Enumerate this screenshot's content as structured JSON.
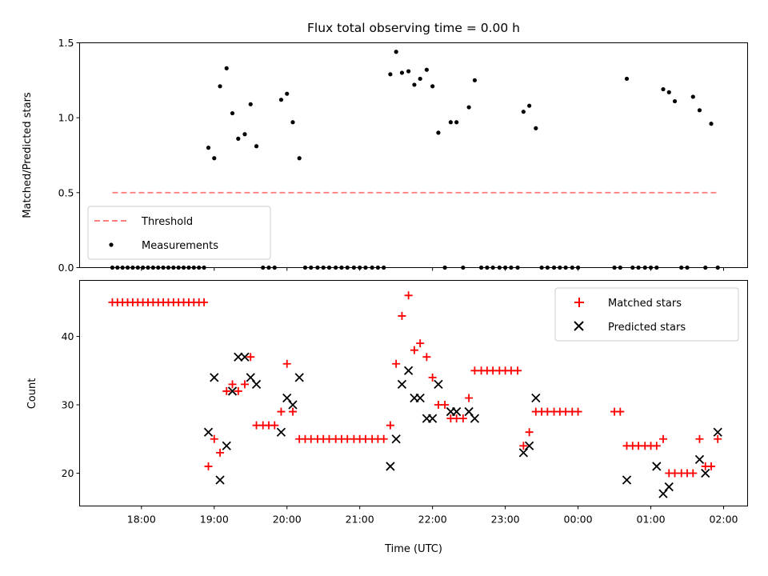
{
  "chart_data": [
    {
      "type": "scatter",
      "title": "Flux total observing time = 0.00 h",
      "xlabel": "",
      "ylabel": "Matched/Predicted stars",
      "xlim": [
        17.15,
        26.33
      ],
      "ylim": [
        0,
        1.5
      ],
      "yticks": [
        0,
        0.5,
        1.0,
        1.5
      ],
      "ytick_labels": [
        "0.0",
        "0.5",
        "1.0",
        "1.5"
      ],
      "legend_position": "lower-left",
      "series": [
        {
          "name": "Threshold",
          "kind": "line",
          "style": "dashed",
          "color": "#ff7f7f",
          "x": [
            17.6,
            25.9
          ],
          "y": [
            0.5,
            0.5
          ]
        },
        {
          "name": "Measurements",
          "kind": "scatter",
          "color": "#000000",
          "x": [
            17.6,
            17.67,
            17.74,
            17.81,
            17.88,
            17.95,
            18.02,
            18.09,
            18.16,
            18.23,
            18.3,
            18.37,
            18.44,
            18.51,
            18.58,
            18.65,
            18.72,
            18.79,
            18.86,
            18.92,
            19.0,
            19.08,
            19.17,
            19.25,
            19.33,
            19.42,
            19.5,
            19.58,
            19.67,
            19.75,
            19.83,
            19.92,
            20.0,
            20.08,
            20.17,
            20.25,
            20.33,
            20.42,
            20.5,
            20.58,
            20.67,
            20.75,
            20.83,
            20.92,
            21.0,
            21.08,
            21.17,
            21.25,
            21.33,
            21.42,
            21.5,
            21.58,
            21.67,
            21.75,
            21.83,
            21.92,
            22.0,
            22.08,
            22.17,
            22.25,
            22.33,
            22.42,
            22.5,
            22.58,
            22.67,
            22.75,
            22.83,
            22.92,
            23.0,
            23.08,
            23.17,
            23.25,
            23.33,
            23.42,
            23.5,
            23.58,
            23.67,
            23.75,
            23.83,
            23.92,
            24.0,
            24.5,
            24.58,
            24.67,
            24.75,
            24.83,
            24.92,
            25.0,
            25.08,
            25.17,
            25.25,
            25.33,
            25.42,
            25.5,
            25.58,
            25.67,
            25.75,
            25.83,
            25.92
          ],
          "y": [
            0,
            0,
            0,
            0,
            0,
            0,
            0,
            0,
            0,
            0,
            0,
            0,
            0,
            0,
            0,
            0,
            0,
            0,
            0,
            0.8,
            0.73,
            1.21,
            1.33,
            1.03,
            0.86,
            0.89,
            1.09,
            0.81,
            0,
            0,
            0,
            1.12,
            1.16,
            0.97,
            0.73,
            0,
            0,
            0,
            0,
            0,
            0,
            0,
            0,
            0,
            0,
            0,
            0,
            0,
            0,
            1.29,
            1.44,
            1.3,
            1.31,
            1.22,
            1.26,
            1.32,
            1.21,
            0.9,
            0,
            0.97,
            0.97,
            0,
            1.07,
            1.25,
            0,
            0,
            0,
            0,
            0,
            0,
            0,
            1.04,
            1.08,
            0.93,
            0,
            0,
            0,
            0,
            0,
            0,
            0,
            0,
            0,
            1.26,
            0,
            0,
            0,
            0,
            0,
            1.19,
            1.17,
            1.11,
            0,
            0,
            1.14,
            1.05,
            0,
            0.96,
            0
          ]
        }
      ]
    },
    {
      "type": "scatter",
      "title": "",
      "xlabel": "Time (UTC)",
      "ylabel": "Count",
      "xlim": [
        17.15,
        26.33
      ],
      "ylim": [
        15.2,
        48.2
      ],
      "xticks": [
        18,
        19,
        20,
        21,
        22,
        23,
        24,
        25,
        26
      ],
      "xtick_labels": [
        "18:00",
        "19:00",
        "20:00",
        "21:00",
        "22:00",
        "23:00",
        "00:00",
        "01:00",
        "02:00"
      ],
      "yticks": [
        20,
        30,
        40
      ],
      "ytick_labels": [
        "20",
        "30",
        "40"
      ],
      "legend_position": "top-right",
      "series": [
        {
          "name": "Matched stars",
          "marker": "plus",
          "color": "#ff0000",
          "x": [
            17.6,
            17.67,
            17.74,
            17.81,
            17.88,
            17.95,
            18.02,
            18.09,
            18.16,
            18.23,
            18.3,
            18.37,
            18.44,
            18.51,
            18.58,
            18.65,
            18.72,
            18.79,
            18.86,
            18.92,
            19.0,
            19.08,
            19.17,
            19.25,
            19.33,
            19.42,
            19.5,
            19.58,
            19.67,
            19.75,
            19.83,
            19.92,
            20.0,
            20.08,
            20.17,
            20.25,
            20.33,
            20.42,
            20.5,
            20.58,
            20.67,
            20.75,
            20.83,
            20.92,
            21.0,
            21.08,
            21.17,
            21.25,
            21.33,
            21.42,
            21.5,
            21.58,
            21.67,
            21.75,
            21.83,
            21.92,
            22.0,
            22.08,
            22.17,
            22.25,
            22.33,
            22.42,
            22.5,
            22.58,
            22.67,
            22.75,
            22.83,
            22.92,
            23.0,
            23.08,
            23.17,
            23.25,
            23.33,
            23.42,
            23.5,
            23.58,
            23.67,
            23.75,
            23.83,
            23.92,
            24.0,
            24.5,
            24.58,
            24.67,
            24.75,
            24.83,
            24.92,
            25.0,
            25.08,
            25.17,
            25.25,
            25.33,
            25.42,
            25.5,
            25.58,
            25.67,
            25.75,
            25.83,
            25.92
          ],
          "y": [
            45,
            45,
            45,
            45,
            45,
            45,
            45,
            45,
            45,
            45,
            45,
            45,
            45,
            45,
            45,
            45,
            45,
            45,
            45,
            21,
            25,
            23,
            32,
            33,
            32,
            33,
            37,
            27,
            27,
            27,
            27,
            29,
            36,
            29,
            25,
            25,
            25,
            25,
            25,
            25,
            25,
            25,
            25,
            25,
            25,
            25,
            25,
            25,
            25,
            27,
            36,
            43,
            46,
            38,
            39,
            37,
            34,
            30,
            30,
            28,
            28,
            28,
            31,
            35,
            35,
            35,
            35,
            35,
            35,
            35,
            35,
            24,
            26,
            29,
            29,
            29,
            29,
            29,
            29,
            29,
            29,
            29,
            29,
            24,
            24,
            24,
            24,
            24,
            24,
            25,
            20,
            20,
            20,
            20,
            20,
            25,
            21,
            21,
            25
          ]
        },
        {
          "name": "Predicted stars",
          "marker": "x",
          "color": "#000000",
          "x": [
            18.92,
            19.0,
            19.08,
            19.17,
            19.25,
            19.33,
            19.42,
            19.5,
            19.58,
            19.92,
            20.0,
            20.08,
            20.17,
            21.42,
            21.5,
            21.58,
            21.67,
            21.75,
            21.83,
            21.92,
            22.0,
            22.08,
            22.25,
            22.33,
            22.5,
            22.58,
            23.25,
            23.33,
            23.42,
            24.67,
            25.08,
            25.17,
            25.25,
            25.67,
            25.75,
            25.92
          ],
          "y": [
            26,
            34,
            19,
            24,
            32,
            37,
            37,
            34,
            33,
            26,
            31,
            30,
            34,
            21,
            25,
            33,
            35,
            31,
            31,
            28,
            28,
            33,
            29,
            29,
            29,
            28,
            23,
            24,
            31,
            19,
            21,
            17,
            18,
            22,
            20,
            26
          ]
        }
      ]
    }
  ]
}
